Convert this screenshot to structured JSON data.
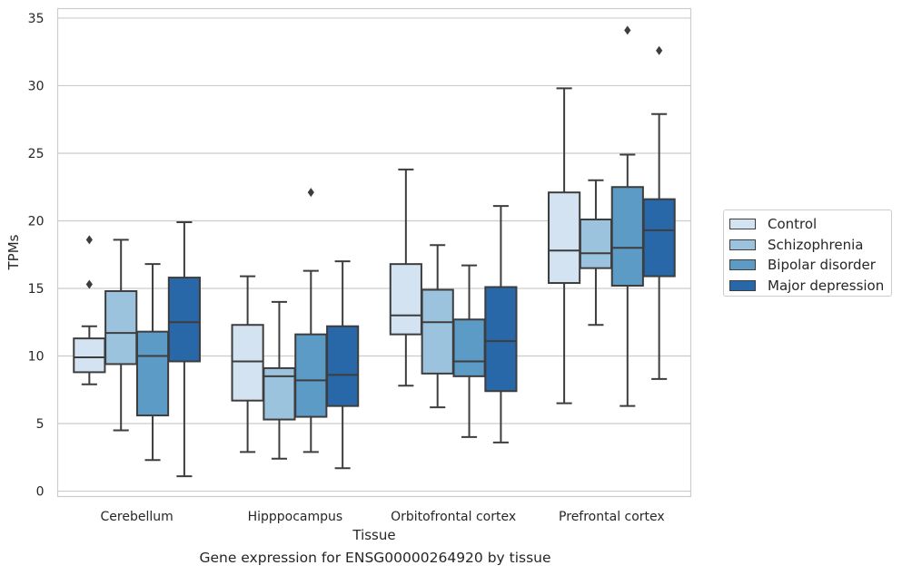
{
  "caption": "Gene expression for ENSG00000264920 by tissue",
  "chart_data": {
    "type": "box",
    "xlabel": "Tissue",
    "ylabel": "TPMs",
    "ylim": [
      -0.4,
      35.7
    ],
    "yticks": [
      0,
      5,
      10,
      15,
      20,
      25,
      30,
      35
    ],
    "grid": "horizontal",
    "legend_position": "right",
    "categories": [
      "Cerebellum",
      "Hipppocampus",
      "Orbitofrontal cortex",
      "Prefrontal cortex"
    ],
    "series": [
      {
        "name": "Control",
        "color": "#d3e3f2",
        "boxes": [
          {
            "min": 7.9,
            "q1": 8.8,
            "median": 9.9,
            "q3": 11.3,
            "max": 12.2,
            "outliers": [
              15.3,
              18.6
            ]
          },
          {
            "min": 2.9,
            "q1": 6.7,
            "median": 9.6,
            "q3": 12.3,
            "max": 15.9,
            "outliers": []
          },
          {
            "min": 7.8,
            "q1": 11.6,
            "median": 13.0,
            "q3": 16.8,
            "max": 23.8,
            "outliers": []
          },
          {
            "min": 6.5,
            "q1": 15.4,
            "median": 17.8,
            "q3": 22.1,
            "max": 29.8,
            "outliers": []
          }
        ]
      },
      {
        "name": "Schizophrenia",
        "color": "#9cc3de",
        "boxes": [
          {
            "min": 4.5,
            "q1": 9.4,
            "median": 11.7,
            "q3": 14.8,
            "max": 18.6,
            "outliers": []
          },
          {
            "min": 2.4,
            "q1": 5.3,
            "median": 8.5,
            "q3": 9.1,
            "max": 14.0,
            "outliers": []
          },
          {
            "min": 6.2,
            "q1": 8.7,
            "median": 12.5,
            "q3": 14.9,
            "max": 18.2,
            "outliers": []
          },
          {
            "min": 12.3,
            "q1": 16.5,
            "median": 17.6,
            "q3": 20.1,
            "max": 23.0,
            "outliers": []
          }
        ]
      },
      {
        "name": "Bipolar disorder",
        "color": "#5b9bc6",
        "boxes": [
          {
            "min": 2.3,
            "q1": 5.6,
            "median": 10.0,
            "q3": 11.8,
            "max": 16.8,
            "outliers": []
          },
          {
            "min": 2.9,
            "q1": 5.5,
            "median": 8.2,
            "q3": 11.6,
            "max": 16.3,
            "outliers": [
              22.1
            ]
          },
          {
            "min": 4.0,
            "q1": 8.5,
            "median": 9.6,
            "q3": 12.7,
            "max": 16.7,
            "outliers": []
          },
          {
            "min": 6.3,
            "q1": 15.2,
            "median": 18.0,
            "q3": 22.5,
            "max": 24.9,
            "outliers": [
              34.1
            ]
          }
        ]
      },
      {
        "name": "Major depression",
        "color": "#2867a8",
        "boxes": [
          {
            "min": 1.1,
            "q1": 9.6,
            "median": 12.5,
            "q3": 15.8,
            "max": 19.9,
            "outliers": []
          },
          {
            "min": 1.7,
            "q1": 6.3,
            "median": 8.6,
            "q3": 12.2,
            "max": 17.0,
            "outliers": []
          },
          {
            "min": 3.6,
            "q1": 7.4,
            "median": 11.1,
            "q3": 15.1,
            "max": 21.1,
            "outliers": []
          },
          {
            "min": 8.3,
            "q1": 15.9,
            "median": 19.3,
            "q3": 21.6,
            "max": 27.9,
            "outliers": [
              32.6
            ]
          }
        ]
      }
    ]
  }
}
